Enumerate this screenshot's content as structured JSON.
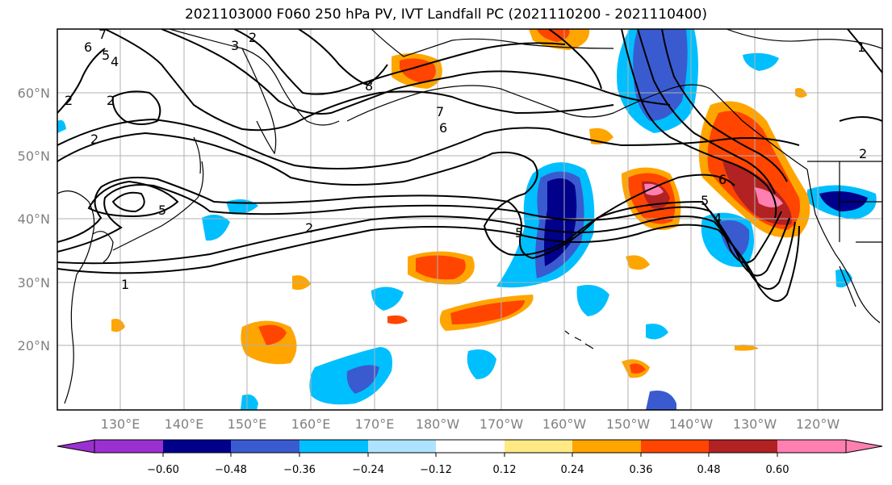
{
  "title": "2021103000 F060 250 hPa PV, IVT Landfall PC (2021110200 - 2021110400)",
  "colors": {
    "n072": "#9b30d0",
    "n060": "#00008b",
    "n048": "#3a5bd0",
    "n036": "#00bfff",
    "n024": "#aee3ff",
    "white": "#ffffff",
    "p012": "#ffe985",
    "p024": "#ffa500",
    "p036": "#ff4500",
    "p048": "#b22222",
    "p060": "#ff80b0"
  },
  "lat_labels": [
    "60°N",
    "50°N",
    "40°N",
    "30°N",
    "20°N"
  ],
  "lon_labels": [
    "130°E",
    "140°E",
    "150°E",
    "160°E",
    "170°E",
    "180°W",
    "170°W",
    "160°W",
    "150°W",
    "140°W",
    "130°W",
    "120°W"
  ],
  "colorbar": {
    "ticks": [
      "−0.60",
      "−0.48",
      "−0.36",
      "−0.24",
      "−0.12",
      "0.12",
      "0.24",
      "0.36",
      "0.48",
      "0.60"
    ]
  },
  "contour_labels": [
    "7",
    "6",
    "5",
    "4",
    "2",
    "3",
    "2",
    "2",
    "2",
    "8",
    "7",
    "6",
    "5",
    "2",
    "1",
    "5",
    "6",
    "5",
    "4",
    "2",
    "1"
  ]
}
